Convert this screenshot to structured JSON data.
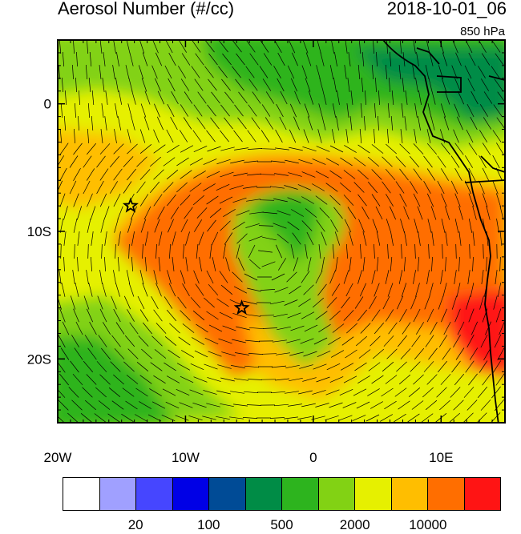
{
  "header": {
    "title": "Aerosol Number (#/cc)",
    "datetime": "2018-10-01_06",
    "level": "850 hPa"
  },
  "map": {
    "lon_range": [
      -20,
      15
    ],
    "lat_range": [
      -25,
      5
    ],
    "x_ticks": [
      {
        "value": -20,
        "label": "20W"
      },
      {
        "value": -10,
        "label": "10W"
      },
      {
        "value": 0,
        "label": "0"
      },
      {
        "value": 10,
        "label": "10E"
      }
    ],
    "y_ticks": [
      {
        "value": 0,
        "label": "0"
      },
      {
        "value": -10,
        "label": "10S"
      },
      {
        "value": -20,
        "label": "20S"
      }
    ],
    "markers": [
      {
        "name": "star-marker",
        "lon": -14.3,
        "lat": -8.0
      },
      {
        "name": "star-marker",
        "lon": -5.6,
        "lat": -16.0
      }
    ]
  },
  "colorbar": {
    "colors": [
      "#ffffff",
      "#a0a0ff",
      "#4646ff",
      "#0000e6",
      "#004b96",
      "#008c46",
      "#2db41e",
      "#82d214",
      "#e6f000",
      "#ffbe00",
      "#ff6e00",
      "#ff1414"
    ],
    "labels": [
      {
        "after_box": 2,
        "text": "20"
      },
      {
        "after_box": 4,
        "text": "100"
      },
      {
        "after_box": 6,
        "text": "500"
      },
      {
        "after_box": 8,
        "text": "2000"
      },
      {
        "after_box": 10,
        "text": "10000"
      }
    ]
  }
}
